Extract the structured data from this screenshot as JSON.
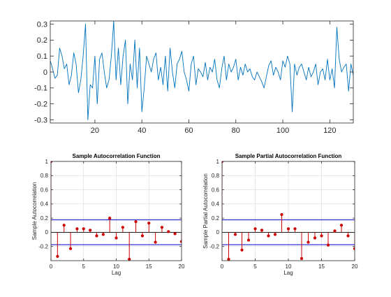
{
  "colors": {
    "line": "#0072bd",
    "stem": "#cc0000",
    "bound": "#0000cc",
    "axis": "#262626",
    "grid": "#d9d9d9"
  },
  "chart_data": [
    {
      "type": "line",
      "title": "",
      "xlabel": "",
      "ylabel": "",
      "xlim": [
        1,
        130
      ],
      "ylim": [
        -0.32,
        0.32
      ],
      "xticks": [
        20,
        40,
        60,
        80,
        100,
        120
      ],
      "xtick_labels": [
        "20",
        "40",
        "60",
        "80",
        "100",
        "120"
      ],
      "yticks": [
        -0.3,
        -0.2,
        -0.1,
        0,
        0.1,
        0.2,
        0.3
      ],
      "ytick_labels": [
        "-0.3",
        "-0.2",
        "-0.1",
        "0",
        "0.1",
        "0.2",
        "0.3"
      ],
      "grid": false,
      "x": [
        1,
        2,
        3,
        4,
        5,
        6,
        7,
        8,
        9,
        10,
        11,
        12,
        13,
        14,
        15,
        16,
        17,
        18,
        19,
        20,
        21,
        22,
        23,
        24,
        25,
        26,
        27,
        28,
        29,
        30,
        31,
        32,
        33,
        34,
        35,
        36,
        37,
        38,
        39,
        40,
        41,
        42,
        43,
        44,
        45,
        46,
        47,
        48,
        49,
        50,
        51,
        52,
        53,
        54,
        55,
        56,
        57,
        58,
        59,
        60,
        61,
        62,
        63,
        64,
        65,
        66,
        67,
        68,
        69,
        70,
        71,
        72,
        73,
        74,
        75,
        76,
        77,
        78,
        79,
        80,
        81,
        82,
        83,
        84,
        85,
        86,
        87,
        88,
        89,
        90,
        91,
        92,
        93,
        94,
        95,
        96,
        97,
        98,
        99,
        100,
        101,
        102,
        103,
        104,
        105,
        106,
        107,
        108,
        109,
        110,
        111,
        112,
        113,
        114,
        115,
        116,
        117,
        118,
        119,
        120,
        121,
        122,
        123,
        124,
        125,
        126,
        127,
        128,
        129,
        130
      ],
      "values": [
        0.07,
        0.02,
        -0.04,
        -0.02,
        0.15,
        0.1,
        0.02,
        0.05,
        -0.08,
        -0.02,
        0.12,
        0.05,
        -0.13,
        -0.05,
        0.1,
        0.3,
        -0.3,
        -0.08,
        -0.1,
        0.1,
        -0.2,
        0.08,
        0.12,
        0.0,
        -0.1,
        -0.05,
        0.1,
        0.32,
        -0.05,
        0.15,
        -0.08,
        0.1,
        0.2,
        -0.2,
        0.05,
        -0.05,
        0.2,
        -0.1,
        0.15,
        -0.25,
        -0.1,
        0.1,
        0.05,
        0.0,
        0.08,
        0.12,
        -0.05,
        0.03,
        -0.08,
        0.1,
        -0.12,
        0.15,
        0.0,
        -0.1,
        0.05,
        0.08,
        0.13,
        0.0,
        -0.05,
        -0.12,
        0.05,
        0.1,
        -0.08,
        0.02,
        0.0,
        -0.03,
        0.06,
        -0.05,
        0.03,
        0.0,
        0.08,
        -0.05,
        -0.1,
        0.02,
        0.1,
        -0.05,
        0.05,
        0.0,
        0.03,
        0.08,
        -0.05,
        0.03,
        -0.02,
        0.05,
        0.0,
        0.02,
        -0.03,
        -0.05,
        0.0,
        -0.03,
        -0.06,
        -0.1,
        -0.03,
        0.04,
        0.07,
        -0.02,
        0.03,
        0.0,
        -0.05,
        0.07,
        0.03,
        0.1,
        0.05,
        -0.25,
        0.05,
        -0.02,
        0.03,
        0.05,
        0.0,
        -0.05,
        0.03,
        -0.03,
        0.0,
        0.05,
        -0.08,
        0.0,
        0.02,
        -0.05,
        0.08,
        -0.05,
        0.02,
        -0.1,
        0.28,
        0.08,
        0.0,
        0.03,
        0.05,
        -0.12,
        0.05,
        -0.02
      ]
    },
    {
      "type": "stem",
      "title": "Sample Autocorrelation Function",
      "xlabel": "Lag",
      "ylabel": "Sample Autocorrelation",
      "xlim": [
        0,
        20
      ],
      "ylim": [
        -0.4,
        1
      ],
      "xticks": [
        0,
        5,
        10,
        15,
        20
      ],
      "xtick_labels": [
        "0",
        "5",
        "10",
        "15",
        "20"
      ],
      "yticks": [
        -0.2,
        0,
        0.2,
        0.4,
        0.6,
        0.8,
        1
      ],
      "ytick_labels": [
        "-0.2",
        "0",
        "0.2",
        "0.4",
        "0.6",
        "0.8",
        "1"
      ],
      "grid": true,
      "x": [
        0,
        1,
        2,
        3,
        4,
        5,
        6,
        7,
        8,
        9,
        10,
        11,
        12,
        13,
        14,
        15,
        16,
        17,
        18,
        19,
        20
      ],
      "values": [
        1,
        -0.34,
        0.1,
        -0.23,
        0.05,
        0.05,
        0.03,
        -0.05,
        -0.03,
        0.2,
        -0.08,
        0.07,
        -0.38,
        0.15,
        -0.05,
        0.13,
        -0.14,
        0.07,
        0.01,
        -0.02,
        -0.13
      ],
      "bounds": [
        0.175,
        -0.175
      ]
    },
    {
      "type": "stem",
      "title": "Sample Partial Autocorrelation Function",
      "xlabel": "Lag",
      "ylabel": "Sample Partial Autocorrelation",
      "xlim": [
        0,
        20
      ],
      "ylim": [
        -0.4,
        1
      ],
      "xticks": [
        0,
        5,
        10,
        15,
        20
      ],
      "xtick_labels": [
        "0",
        "5",
        "10",
        "15",
        "20"
      ],
      "yticks": [
        -0.2,
        0,
        0.2,
        0.4,
        0.6,
        0.8,
        1
      ],
      "ytick_labels": [
        "-0.2",
        "0",
        "0.2",
        "0.4",
        "0.6",
        "0.8",
        "1"
      ],
      "grid": true,
      "x": [
        0,
        1,
        2,
        3,
        4,
        5,
        6,
        7,
        8,
        9,
        10,
        11,
        12,
        13,
        14,
        15,
        16,
        17,
        18,
        19,
        20
      ],
      "values": [
        1,
        -0.38,
        -0.03,
        -0.25,
        -0.11,
        0.05,
        0.03,
        -0.05,
        -0.03,
        0.25,
        0.05,
        0.05,
        -0.37,
        -0.14,
        -0.08,
        -0.05,
        -0.18,
        0.02,
        0.1,
        -0.05,
        -0.23
      ],
      "bounds": [
        0.175,
        -0.175
      ]
    }
  ]
}
